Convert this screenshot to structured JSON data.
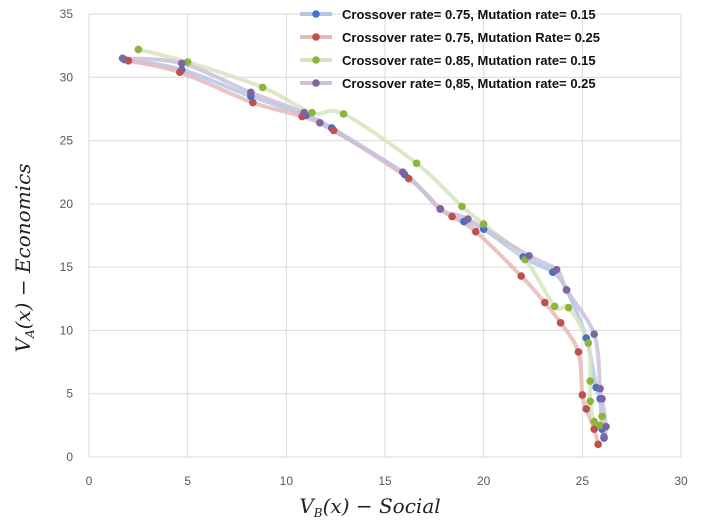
{
  "chart_data": {
    "type": "scatter",
    "xlabel_main": "V",
    "xlabel_sub": "B",
    "xlabel_rest": "(x) − Social",
    "ylabel_main": "V",
    "ylabel_sub": "A",
    "ylabel_rest": "(x) − Economics",
    "xlim": [
      0,
      30
    ],
    "ylim": [
      0,
      35
    ],
    "xticks": [
      "0",
      "5",
      "10",
      "15",
      "20",
      "25",
      "30"
    ],
    "yticks": [
      "0",
      "5",
      "10",
      "15",
      "20",
      "25",
      "30",
      "35"
    ],
    "grid": true,
    "legend_position": "top-right",
    "series": [
      {
        "name": "Crossover rate= 0.75, Mutation rate= 0.15",
        "color": "#4472c4",
        "line_color": "#b4c7e7",
        "points": [
          [
            1.8,
            31.4
          ],
          [
            4.7,
            30.6
          ],
          [
            8.2,
            28.5
          ],
          [
            11.0,
            27.0
          ],
          [
            12.3,
            26.0
          ],
          [
            16.0,
            22.3
          ],
          [
            17.8,
            19.6
          ],
          [
            19.0,
            18.6
          ],
          [
            20.0,
            18.0
          ],
          [
            22.0,
            15.8
          ],
          [
            23.5,
            14.6
          ],
          [
            24.2,
            13.2
          ],
          [
            25.2,
            9.4
          ],
          [
            25.7,
            5.5
          ],
          [
            25.9,
            4.6
          ],
          [
            26.0,
            2.2
          ],
          [
            26.1,
            1.5
          ]
        ]
      },
      {
        "name": "Crossover rate= 0.75, Mutation Rate= 0.25",
        "color": "#c0504d",
        "line_color": "#e6b9b8",
        "points": [
          [
            2.0,
            31.3
          ],
          [
            4.6,
            30.4
          ],
          [
            8.3,
            28.0
          ],
          [
            10.8,
            26.9
          ],
          [
            12.4,
            25.8
          ],
          [
            16.2,
            22.0
          ],
          [
            17.8,
            19.6
          ],
          [
            18.4,
            19.0
          ],
          [
            19.6,
            17.8
          ],
          [
            21.9,
            14.3
          ],
          [
            23.1,
            12.2
          ],
          [
            23.9,
            10.6
          ],
          [
            24.8,
            8.3
          ],
          [
            25.0,
            4.9
          ],
          [
            25.2,
            3.8
          ],
          [
            25.6,
            2.2
          ],
          [
            25.8,
            1.0
          ]
        ]
      },
      {
        "name": "Crossover rate= 0.85, Mutation rate= 0.15",
        "color": "#8db53c",
        "line_color": "#d7e4bd",
        "points": [
          [
            2.5,
            32.2
          ],
          [
            5.0,
            31.2
          ],
          [
            8.8,
            29.2
          ],
          [
            11.3,
            27.2
          ],
          [
            12.9,
            27.1
          ],
          [
            16.6,
            23.2
          ],
          [
            18.9,
            19.8
          ],
          [
            20.0,
            18.4
          ],
          [
            22.1,
            15.6
          ],
          [
            23.6,
            11.9
          ],
          [
            24.3,
            11.8
          ],
          [
            25.3,
            9.0
          ],
          [
            25.4,
            6.0
          ],
          [
            25.4,
            4.4
          ],
          [
            25.6,
            2.8
          ],
          [
            25.9,
            2.5
          ],
          [
            26.0,
            3.2
          ]
        ]
      },
      {
        "name": "Crossover rate= 0,85, Mutation rate= 0.25",
        "color": "#8064a2",
        "line_color": "#ccc1da",
        "points": [
          [
            1.7,
            31.5
          ],
          [
            4.7,
            31.1
          ],
          [
            8.2,
            28.8
          ],
          [
            10.9,
            27.2
          ],
          [
            11.7,
            26.4
          ],
          [
            15.9,
            22.5
          ],
          [
            17.8,
            19.6
          ],
          [
            19.2,
            18.8
          ],
          [
            22.3,
            15.9
          ],
          [
            23.7,
            14.8
          ],
          [
            24.2,
            13.2
          ],
          [
            25.6,
            9.7
          ],
          [
            25.9,
            5.4
          ],
          [
            26.0,
            4.6
          ],
          [
            26.2,
            2.4
          ],
          [
            26.1,
            1.6
          ]
        ]
      }
    ]
  }
}
